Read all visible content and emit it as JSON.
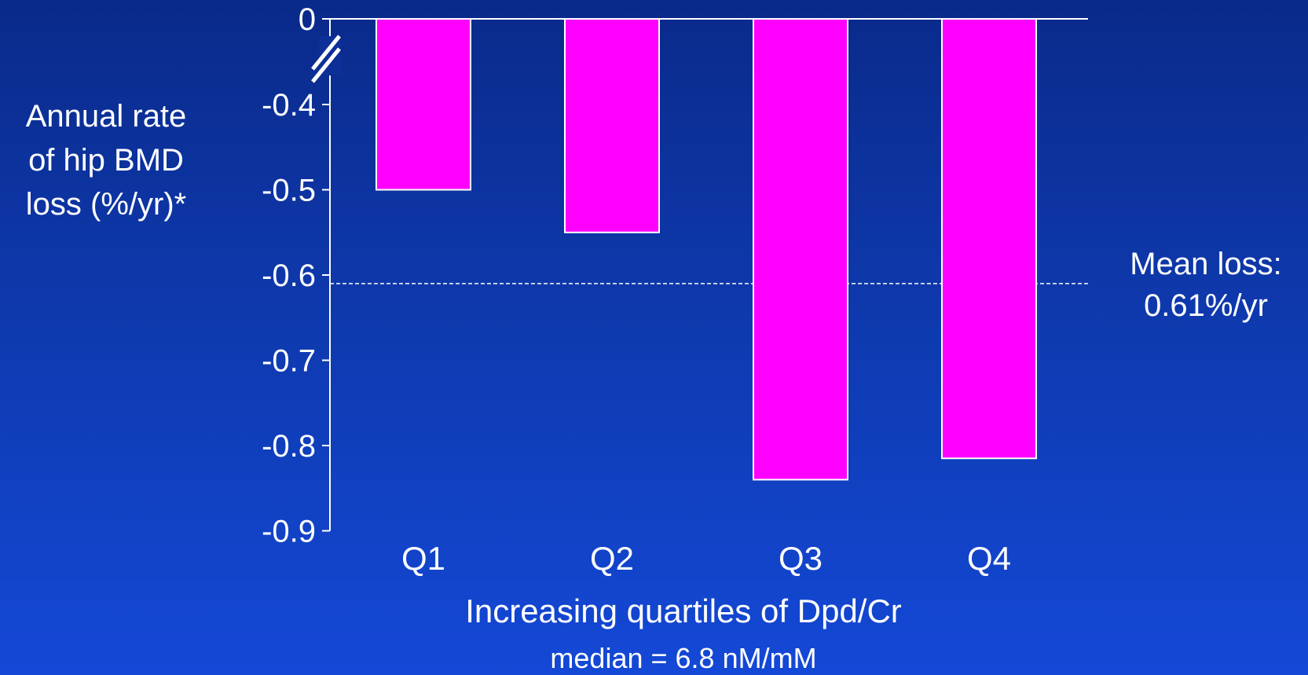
{
  "chart_data": {
    "type": "bar",
    "categories": [
      "Q1",
      "Q2",
      "Q3",
      "Q4"
    ],
    "values": [
      -0.5,
      -0.55,
      -0.84,
      -0.815
    ],
    "ylabel_lines": [
      "Annual rate",
      "of hip BMD",
      "loss (%/yr)*"
    ],
    "xlabel": "Increasing quartiles of Dpd/Cr",
    "xlabel_sub": "median = 6.8 nM/mM",
    "yticks": [
      0,
      -0.4,
      -0.5,
      -0.6,
      -0.7,
      -0.8,
      -0.9
    ],
    "ytick_labels": [
      "0",
      "-0.4",
      "-0.5",
      "-0.6",
      "-0.7",
      "-0.8",
      "-0.9"
    ],
    "axis_break": true,
    "reference_line": {
      "value": -0.61,
      "style": "dashed",
      "label_lines": [
        "Mean loss:",
        "0.61%/yr"
      ]
    },
    "bar_color": "#ff00ff",
    "grid": false,
    "legend": "none"
  }
}
